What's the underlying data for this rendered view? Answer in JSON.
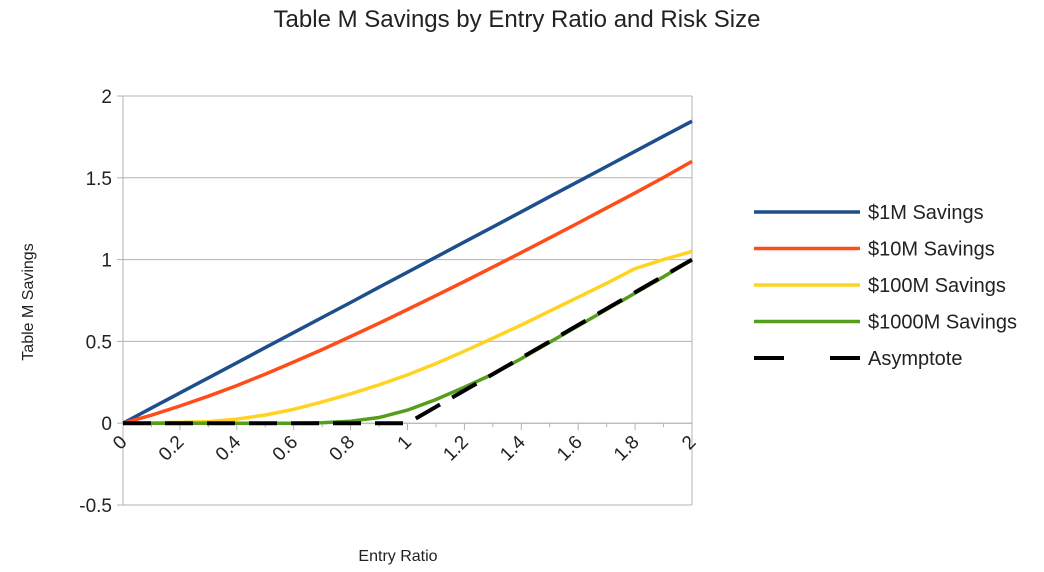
{
  "chart_data": {
    "type": "line",
    "title": "Table M Savings by Entry Ratio and Risk Size",
    "xlabel": "Entry Ratio",
    "ylabel": "Table M Savings",
    "xlim": [
      0,
      2
    ],
    "ylim": [
      -0.5,
      2
    ],
    "x_ticks": [
      "0",
      "0.2",
      "0.4",
      "0.6",
      "0.8",
      "1",
      "1.2",
      "1.4",
      "1.6",
      "1.8",
      "2"
    ],
    "y_ticks": [
      "-0.5",
      "0",
      "0.5",
      "1",
      "1.5",
      "2"
    ],
    "grid": "horizontal",
    "legend_position": "right",
    "x": [
      0,
      0.1,
      0.2,
      0.3,
      0.4,
      0.5,
      0.6,
      0.7,
      0.8,
      0.9,
      1.0,
      1.1,
      1.2,
      1.3,
      1.4,
      1.5,
      1.6,
      1.7,
      1.8,
      1.9,
      2.0
    ],
    "series": [
      {
        "name": "$1M Savings",
        "color": "#1f4e8c",
        "dash": "solid",
        "values": [
          0,
          0.092,
          0.185,
          0.277,
          0.369,
          0.462,
          0.554,
          0.646,
          0.738,
          0.831,
          0.923,
          1.015,
          1.108,
          1.2,
          1.292,
          1.385,
          1.477,
          1.569,
          1.662,
          1.754,
          1.846
        ]
      },
      {
        "name": "$10M Savings",
        "color": "#ff4d1a",
        "dash": "solid",
        "values": [
          0,
          0.049,
          0.105,
          0.165,
          0.23,
          0.3,
          0.374,
          0.45,
          0.53,
          0.611,
          0.695,
          0.78,
          0.866,
          0.954,
          1.043,
          1.133,
          1.224,
          1.316,
          1.408,
          1.502,
          1.6
        ]
      },
      {
        "name": "$100M Savings",
        "color": "#ffd320",
        "dash": "solid",
        "values": [
          0,
          0.002,
          0.005,
          0.01,
          0.025,
          0.05,
          0.085,
          0.13,
          0.18,
          0.235,
          0.295,
          0.365,
          0.44,
          0.52,
          0.6,
          0.685,
          0.77,
          0.855,
          0.945,
          1.0,
          1.05
        ]
      },
      {
        "name": "$1000M Savings",
        "color": "#579d1c",
        "dash": "solid",
        "values": [
          0,
          0,
          0,
          0,
          0,
          0,
          0,
          0.003,
          0.012,
          0.035,
          0.08,
          0.145,
          0.22,
          0.3,
          0.395,
          0.495,
          0.595,
          0.695,
          0.795,
          0.895,
          1.0
        ]
      },
      {
        "name": "Asymptote",
        "color": "#000000",
        "dash": "dashed",
        "values": [
          0,
          0,
          0,
          0,
          0,
          0,
          0,
          0,
          0,
          0,
          0,
          0.1,
          0.2,
          0.3,
          0.4,
          0.5,
          0.6,
          0.7,
          0.8,
          0.9,
          1.0
        ]
      }
    ]
  }
}
